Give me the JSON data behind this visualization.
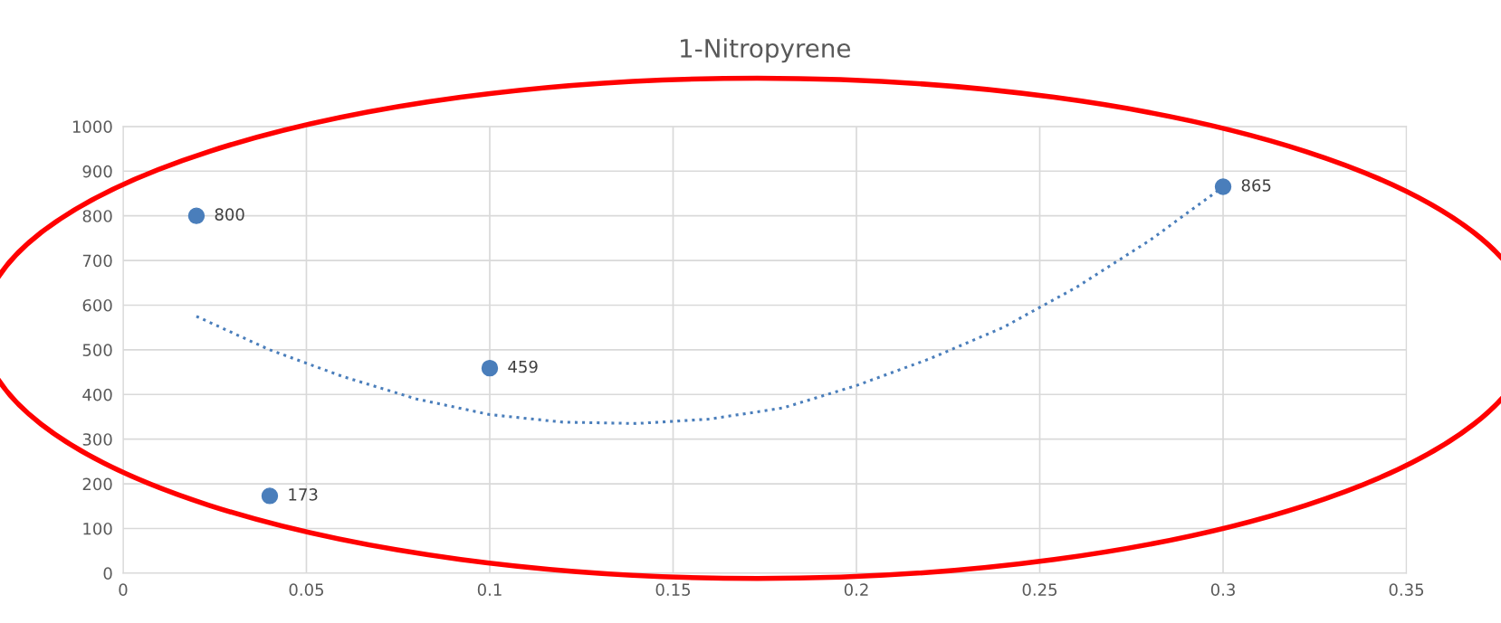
{
  "chart_data": {
    "type": "scatter",
    "title": "1-Nitropyrene",
    "series": [
      {
        "color": "#4a7ebb",
        "marker": "circle",
        "x": [
          0.02,
          0.04,
          0.1,
          0.3
        ],
        "values": [
          800,
          173,
          459,
          865
        ],
        "value_labels": [
          "800",
          "173",
          "459",
          "865"
        ]
      },
      {
        "type": "line",
        "color": "#4a7ebb",
        "line_style": "dotted",
        "marker": "none",
        "x": [
          0.02,
          0.04,
          0.06,
          0.08,
          0.1,
          0.12,
          0.14,
          0.16,
          0.18,
          0.2,
          0.22,
          0.24,
          0.26,
          0.28,
          0.3
        ],
        "values": [
          575,
          500,
          440,
          390,
          355,
          338,
          335,
          345,
          370,
          420,
          480,
          550,
          640,
          745,
          865
        ]
      }
    ],
    "xlim": [
      0,
      0.35
    ],
    "xticks": [
      0,
      0.05,
      0.1,
      0.15,
      0.2,
      0.25,
      0.3,
      0.35
    ],
    "ylim": [
      0,
      1000
    ],
    "yticks": [
      0,
      100,
      200,
      300,
      400,
      500,
      600,
      700,
      800,
      900,
      1000
    ],
    "grid": true,
    "legend": false
  }
}
